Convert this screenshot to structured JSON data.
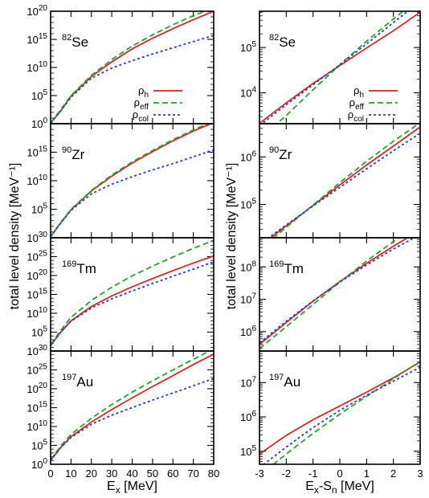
{
  "chart_data": {
    "type": "line",
    "ylabel": "total level density [MeV⁻¹]",
    "legend": {
      "placement": "right",
      "entries": [
        {
          "key": "h",
          "label": "ρh",
          "base": "ρ",
          "sub": "h",
          "color": "#e41a1c",
          "dash": "solid"
        },
        {
          "key": "eff",
          "label": "ρeff",
          "base": "ρ",
          "sub": "eff",
          "color": "#2ca02c",
          "dash": "dashed"
        },
        {
          "key": "col",
          "label": "ρcol",
          "base": "ρ",
          "sub": "col",
          "color": "#1f3fd0",
          "dash": "dotted"
        }
      ]
    },
    "columns": [
      {
        "xlabel": "Ex [MeV]",
        "xlabel_base": "E",
        "xlabel_sub": "x",
        "xlabel_rest": " [MeV]",
        "xlim": [
          0,
          80
        ],
        "xticks": [
          "0",
          "10",
          "20",
          "30",
          "40",
          "50",
          "60",
          "70",
          "80"
        ],
        "panels": [
          {
            "nucleus": "82Se",
            "mass": "82",
            "element": "Se",
            "yscale": "log",
            "ylim_exp": [
              0,
              20
            ],
            "ytick_labels": [
              "10^0",
              "10^5",
              "10^10",
              "10^15",
              "10^20"
            ],
            "x": [
              0,
              5,
              10,
              20,
              30,
              40,
              50,
              60,
              70,
              80
            ],
            "series": {
              "h": [
                0.1,
                2.3,
                4.9,
                8.4,
                11.0,
                13.3,
                15.2,
                16.9,
                18.5,
                20.0
              ],
              "eff": [
                0.2,
                2.5,
                5.0,
                8.6,
                11.4,
                13.8,
                15.8,
                17.6,
                19.2,
                20.6
              ],
              "col": [
                0.1,
                2.3,
                4.7,
                8.1,
                9.9,
                11.2,
                12.4,
                13.5,
                14.6,
                15.7
              ]
            }
          },
          {
            "nucleus": "90Zr",
            "mass": "90",
            "element": "Zr",
            "yscale": "log",
            "ylim_exp": [
              0,
              20
            ],
            "ytick_labels": [
              "10^5",
              "10^10",
              "10^15"
            ],
            "x": [
              0,
              5,
              10,
              20,
              30,
              40,
              50,
              60,
              70,
              80
            ],
            "series": {
              "h": [
                0.2,
                2.6,
                4.9,
                8.2,
                10.8,
                13.1,
                15.1,
                17.0,
                18.7,
                20.2
              ],
              "eff": [
                0.2,
                2.7,
                5.0,
                8.3,
                11.0,
                13.3,
                15.3,
                17.2,
                18.9,
                20.5
              ],
              "col": [
                0.2,
                2.6,
                4.8,
                7.7,
                9.4,
                10.7,
                11.9,
                13.0,
                14.2,
                15.4
              ]
            }
          },
          {
            "nucleus": "169Tm",
            "mass": "169",
            "element": "Tm",
            "yscale": "log",
            "ylim_exp": [
              0,
              30
            ],
            "ytick_labels": [
              "10^5",
              "10^10",
              "10^15",
              "10^20",
              "10^25",
              "10^30"
            ],
            "x": [
              0,
              5,
              10,
              20,
              30,
              40,
              50,
              60,
              70,
              80
            ],
            "series": {
              "h": [
                1.5,
                5.0,
                8.0,
                11.8,
                14.6,
                17.0,
                19.2,
                21.3,
                23.3,
                25.2
              ],
              "eff": [
                1.7,
                5.5,
                8.9,
                13.4,
                16.9,
                19.9,
                22.5,
                24.9,
                27.2,
                29.3
              ],
              "col": [
                1.5,
                5.0,
                7.9,
                11.4,
                13.8,
                15.9,
                17.9,
                19.8,
                21.7,
                23.6
              ]
            }
          },
          {
            "nucleus": "197Au",
            "mass": "197",
            "element": "Au",
            "yscale": "log",
            "ylim_exp": [
              0,
              30
            ],
            "ytick_labels": [
              "10^0",
              "10^5",
              "10^10",
              "10^15",
              "10^20",
              "10^25",
              "10^30"
            ],
            "x": [
              0,
              5,
              10,
              20,
              30,
              40,
              50,
              60,
              70,
              80
            ],
            "series": {
              "h": [
                1.0,
                4.5,
                7.3,
                11.2,
                14.5,
                17.6,
                20.6,
                23.5,
                26.4,
                29.2
              ],
              "eff": [
                1.2,
                4.9,
                7.9,
                12.2,
                15.8,
                19.1,
                22.1,
                25.0,
                27.8,
                30.6
              ],
              "col": [
                1.0,
                4.4,
                7.1,
                10.6,
                13.0,
                15.0,
                17.0,
                18.9,
                20.8,
                22.7
              ]
            }
          }
        ]
      },
      {
        "xlabel": "Ex-Sn [MeV]",
        "xlabel_base": "E",
        "xlabel_sub": "x",
        "xlabel_mid": "-S",
        "xlabel_sub2": "n",
        "xlabel_rest": " [MeV]",
        "xlim": [
          -3,
          3
        ],
        "xticks": [
          "-3",
          "-2",
          "-1",
          "0",
          "1",
          "2",
          "3"
        ],
        "panels": [
          {
            "nucleus": "82Se",
            "mass": "82",
            "element": "Se",
            "yscale": "log",
            "ylim_exp": [
              3.32,
              5.8
            ],
            "ytick_labels": [
              "10^4",
              "10^5"
            ],
            "x": [
              -3,
              -2,
              -1,
              0,
              1,
              2,
              3
            ],
            "series": {
              "h": [
                3.33,
                3.78,
                4.21,
                4.6,
                4.99,
                5.37,
                5.78
              ],
              "eff": [
                3.0,
                3.5,
                4.07,
                4.62,
                5.14,
                5.63,
                6.1
              ],
              "col": [
                3.28,
                3.74,
                4.18,
                4.62,
                5.08,
                5.55,
                6.02
              ]
            }
          },
          {
            "nucleus": "90Zr",
            "mass": "90",
            "element": "Zr",
            "yscale": "log",
            "ylim_exp": [
              4.3,
              6.7
            ],
            "ytick_labels": [
              "10^5",
              "10^6"
            ],
            "x": [
              -3,
              -2,
              -1,
              0,
              1,
              2,
              3
            ],
            "series": {
              "h": [
                4.12,
                4.55,
                4.98,
                5.41,
                5.83,
                6.23,
                6.63
              ],
              "eff": [
                4.05,
                4.52,
                4.99,
                5.46,
                5.91,
                6.33,
                6.72
              ],
              "col": [
                4.16,
                4.57,
                4.97,
                5.36,
                5.75,
                6.13,
                6.5
              ]
            }
          },
          {
            "nucleus": "169Tm",
            "mass": "169",
            "element": "Tm",
            "yscale": "log",
            "ylim_exp": [
              5.4,
              8.9
            ],
            "ytick_labels": [
              "10^6",
              "10^7",
              "10^8"
            ],
            "x": [
              -3,
              -2,
              -1,
              0,
              1,
              2,
              3
            ],
            "series": {
              "h": [
                5.6,
                6.28,
                6.94,
                7.55,
                8.11,
                8.64,
                9.13
              ],
              "eff": [
                5.48,
                6.15,
                6.84,
                7.53,
                8.18,
                8.78,
                9.33
              ],
              "col": [
                5.65,
                6.32,
                6.95,
                7.53,
                8.06,
                8.55,
                9.0
              ]
            }
          },
          {
            "nucleus": "197Au",
            "mass": "197",
            "element": "Au",
            "yscale": "log",
            "ylim_exp": [
              4.62,
              7.92
            ],
            "ytick_labels": [
              "10^5",
              "10^6",
              "10^7"
            ],
            "x": [
              -3,
              -2,
              -1,
              0,
              1,
              2,
              3
            ],
            "series": {
              "h": [
                4.92,
                5.46,
                5.92,
                6.32,
                6.72,
                7.14,
                7.6
              ],
              "eff": [
                4.28,
                4.92,
                5.52,
                6.08,
                6.6,
                7.11,
                7.62
              ],
              "col": [
                4.52,
                5.12,
                5.69,
                6.19,
                6.63,
                7.04,
                7.45
              ]
            }
          }
        ]
      }
    ]
  }
}
